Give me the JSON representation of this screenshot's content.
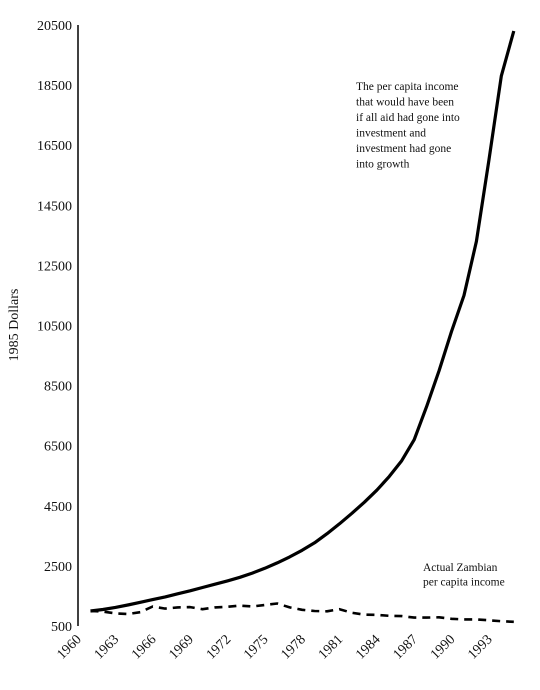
{
  "chart_data": {
    "type": "line",
    "ylabel": "1985 Dollars",
    "xlabel": "",
    "ylim": [
      500,
      20500
    ],
    "xlim": [
      1960,
      1995.5
    ],
    "yticks": [
      500,
      2500,
      4500,
      6500,
      8500,
      10500,
      12500,
      14500,
      16500,
      18500,
      20500
    ],
    "xticks": [
      1960,
      1963,
      1966,
      1969,
      1972,
      1975,
      1978,
      1981,
      1984,
      1987,
      1990,
      1993
    ],
    "series": [
      {
        "label": "The per capita income that would have been if all aid had gone into investment and investment had gone into growth",
        "style": "solid",
        "color": "#000000",
        "x": [
          1961,
          1962,
          1963,
          1964,
          1965,
          1966,
          1967,
          1968,
          1969,
          1970,
          1971,
          1972,
          1973,
          1974,
          1975,
          1976,
          1977,
          1978,
          1979,
          1980,
          1981,
          1982,
          1983,
          1984,
          1985,
          1986,
          1987,
          1988,
          1989,
          1990,
          1991,
          1992,
          1993,
          1994,
          1995
        ],
        "y": [
          1000,
          1050,
          1120,
          1200,
          1290,
          1380,
          1470,
          1570,
          1670,
          1780,
          1890,
          2000,
          2120,
          2260,
          2420,
          2600,
          2800,
          3020,
          3270,
          3570,
          3900,
          4250,
          4620,
          5020,
          5480,
          6000,
          6700,
          7800,
          9000,
          10300,
          11500,
          13300,
          16000,
          18800,
          20300
        ]
      },
      {
        "label": "Actual Zambian per capita income",
        "style": "dashed",
        "color": "#000000",
        "x": [
          1961,
          1962,
          1963,
          1964,
          1965,
          1966,
          1967,
          1968,
          1969,
          1970,
          1971,
          1972,
          1973,
          1974,
          1975,
          1976,
          1977,
          1978,
          1979,
          1980,
          1981,
          1982,
          1983,
          1984,
          1985,
          1986,
          1987,
          1988,
          1989,
          1990,
          1991,
          1992,
          1993,
          1994,
          1995
        ],
        "y": [
          1000,
          980,
          920,
          900,
          960,
          1150,
          1080,
          1120,
          1130,
          1060,
          1120,
          1140,
          1180,
          1150,
          1200,
          1250,
          1120,
          1040,
          1000,
          990,
          1060,
          940,
          880,
          870,
          840,
          830,
          780,
          780,
          790,
          740,
          720,
          720,
          690,
          660,
          640
        ]
      }
    ],
    "annotations": [
      {
        "series": 0,
        "lines": [
          "The per capita income",
          "that would have been",
          "if all aid had gone into",
          "investment and",
          "investment had gone",
          "into growth"
        ]
      },
      {
        "series": 1,
        "lines": [
          "Actual Zambian",
          "per capita income"
        ]
      }
    ]
  }
}
